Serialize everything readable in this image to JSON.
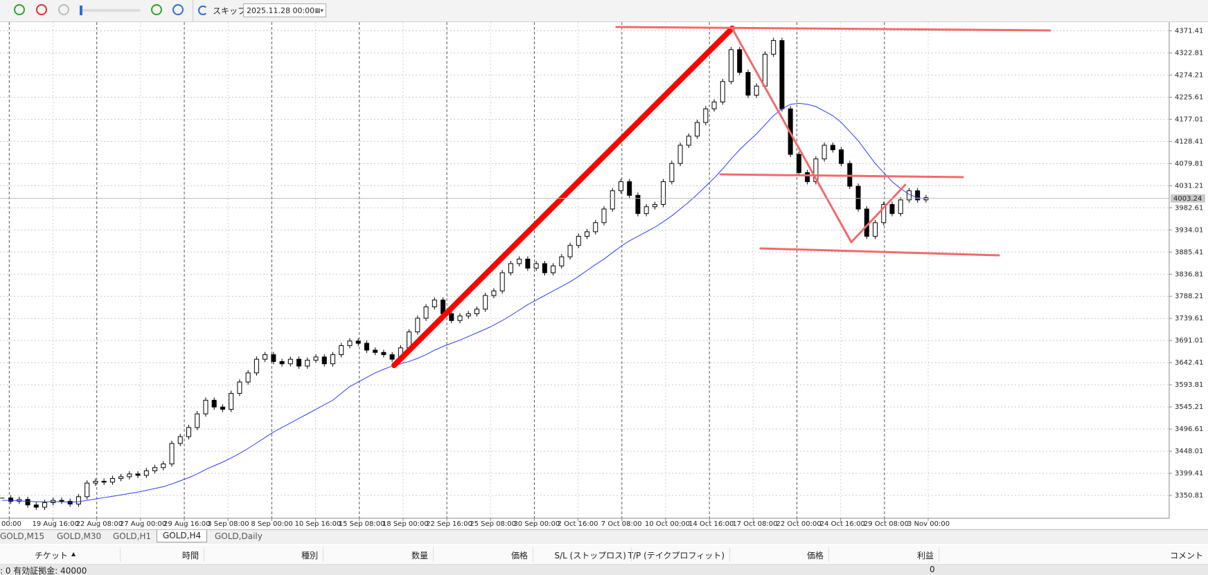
{
  "toolbar": {
    "skip": "スキップ",
    "date": "2025.11.28 00:00"
  },
  "chart_data": {
    "type": "candlestick",
    "close": [
      3345,
      3338,
      3342,
      3330,
      3325,
      3335,
      3340,
      3338,
      3332,
      3348,
      3378,
      3382,
      3380,
      3388,
      3392,
      3398,
      3395,
      3405,
      3412,
      3420,
      3465,
      3480,
      3500,
      3530,
      3560,
      3545,
      3540,
      3575,
      3600,
      3620,
      3650,
      3660,
      3645,
      3640,
      3650,
      3635,
      3648,
      3655,
      3640,
      3660,
      3680,
      3690,
      3685,
      3670,
      3665,
      3660,
      3650,
      3675,
      3710,
      3740,
      3765,
      3780,
      3750,
      3735,
      3745,
      3750,
      3760,
      3790,
      3800,
      3840,
      3860,
      3870,
      3850,
      3860,
      3840,
      3855,
      3875,
      3900,
      3920,
      3930,
      3950,
      3980,
      4020,
      4040,
      4010,
      3970,
      3985,
      3990,
      4040,
      4080,
      4120,
      4140,
      4170,
      4200,
      4215,
      4260,
      4330,
      4280,
      4230,
      4250,
      4320,
      4350,
      4200,
      4100,
      4060,
      4040,
      4090,
      4120,
      4110,
      4080,
      4030,
      3980,
      3920,
      3950,
      3990,
      3970,
      4000,
      4020,
      4000,
      4005
    ],
    "ma": [
      3340,
      3340,
      3339,
      3338,
      3337,
      3337,
      3337,
      3337,
      3336,
      3337,
      3340,
      3343,
      3346,
      3349,
      3352,
      3355,
      3358,
      3362,
      3366,
      3370,
      3376,
      3383,
      3390,
      3398,
      3408,
      3416,
      3424,
      3433,
      3443,
      3454,
      3466,
      3478,
      3490,
      3500,
      3510,
      3520,
      3530,
      3540,
      3550,
      3560,
      3575,
      3590,
      3600,
      3610,
      3620,
      3628,
      3635,
      3640,
      3645,
      3652,
      3660,
      3670,
      3678,
      3685,
      3692,
      3700,
      3708,
      3716,
      3725,
      3735,
      3746,
      3758,
      3770,
      3780,
      3790,
      3800,
      3810,
      3820,
      3832,
      3845,
      3858,
      3870,
      3884,
      3898,
      3910,
      3920,
      3930,
      3940,
      3952,
      3965,
      3980,
      3995,
      4012,
      4030,
      4048,
      4068,
      4090,
      4110,
      4128,
      4145,
      4165,
      4185,
      4200,
      4210,
      4212,
      4210,
      4205,
      4195,
      4185,
      4170,
      4150,
      4130,
      4105,
      4080,
      4060,
      4040,
      4025,
      4012,
      4005,
      4002
    ],
    "ma_color": "#2b3cff",
    "current_price": 4003.24,
    "ylim": [
      3301.3,
      4388.3
    ],
    "yticks": [
      4371.41,
      4322.81,
      4274.21,
      4225.61,
      4177.01,
      4128.41,
      4079.81,
      4031.21,
      3982.61,
      3934.01,
      3885.41,
      3836.81,
      3788.21,
      3739.61,
      3691.01,
      3642.41,
      3593.81,
      3545.21,
      3496.61,
      3448.01,
      3399.41,
      3350.81
    ],
    "grid": true,
    "x_labels": [
      "00:00",
      "19 Aug 16:00",
      "22 Aug 08:00",
      "27 Aug 00:00",
      "29 Aug 16:00",
      "3 Sep 08:00",
      "8 Sep 00:00",
      "10 Sep 16:00",
      "15 Sep 08:00",
      "18 Sep 00:00",
      "22 Sep 16:00",
      "25 Sep 08:00",
      "30 Sep 00:00",
      "2 Oct 16:00",
      "7 Oct 08:00",
      "10 Oct 00:00",
      "14 Oct 16:00",
      "17 Oct 08:00",
      "22 Oct 00:00",
      "24 Oct 16:00",
      "29 Oct 08:00",
      "3 Nov 00:00"
    ]
  },
  "tabs": [
    "GOLD,M15",
    "GOLD,M30",
    "GOLD,H1",
    "GOLD,H4",
    "GOLD,Daily"
  ],
  "terminal": {
    "columns": [
      "チケット",
      "時間",
      "種別",
      "数量",
      "価格",
      "S/L (ストップロス)",
      "T/P (テイクプロフィット)",
      "価格",
      "利益",
      "コメント"
    ],
    "status": ": 0  有効証拠金: 40000",
    "profit": 0
  }
}
